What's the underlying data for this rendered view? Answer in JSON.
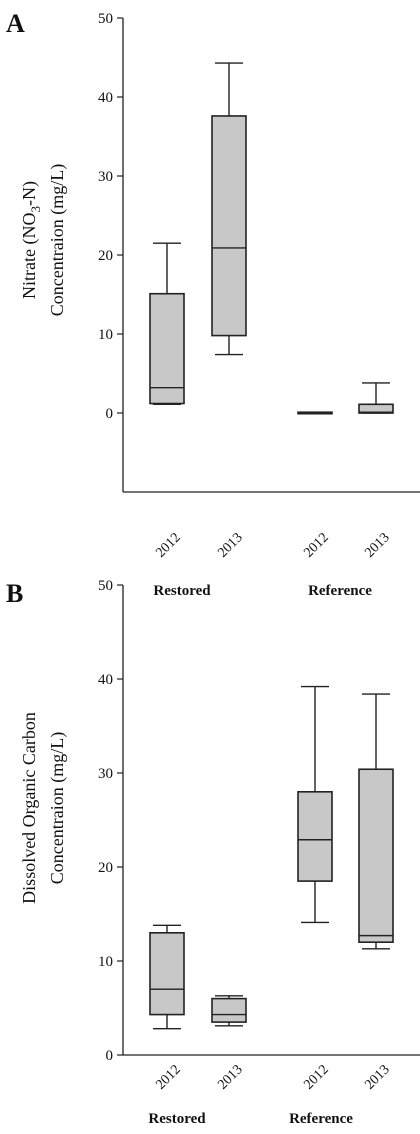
{
  "colors": {
    "box_fill": "#c8c8c8",
    "stroke": "#222222"
  },
  "chart_data": [
    {
      "type": "box",
      "panel_label": "A",
      "ylabel_lines": [
        "Nitrate (NO3-N)",
        "Concentraion (mg/L)"
      ],
      "ylim": [
        -10,
        50
      ],
      "yticks": [
        "0",
        "10",
        "20",
        "30",
        "40",
        "50"
      ],
      "categories": [
        "2012",
        "2013",
        "2012",
        "2013"
      ],
      "groups": [
        {
          "label": "Restored",
          "categories": [
            0,
            1
          ]
        },
        {
          "label": "Reference",
          "categories": [
            2,
            3
          ]
        }
      ],
      "boxes": [
        {
          "whisker_low": 1.1,
          "q1": 1.2,
          "median": 3.2,
          "q3": 15.1,
          "whisker_high": 21.5
        },
        {
          "whisker_low": 7.4,
          "q1": 9.8,
          "median": 20.9,
          "q3": 37.6,
          "whisker_high": 44.3
        },
        {
          "whisker_low": 0.0,
          "q1": 0.0,
          "median": 0.0,
          "q3": 0.1,
          "whisker_high": 0.1
        },
        {
          "whisker_low": 0.0,
          "q1": 0.0,
          "median": 0.1,
          "q3": 1.1,
          "whisker_high": 3.8
        }
      ]
    },
    {
      "type": "box",
      "panel_label": "B",
      "ylabel_lines": [
        "Dissolved Organic Carbon",
        "Concentraion (mg/L)"
      ],
      "ylim": [
        0,
        50
      ],
      "yticks": [
        "0",
        "10",
        "20",
        "30",
        "40",
        "50"
      ],
      "categories": [
        "2012",
        "2013",
        "2012",
        "2013"
      ],
      "groups": [
        {
          "label": "Restored",
          "categories": [
            0,
            1
          ]
        },
        {
          "label": "Reference",
          "categories": [
            2,
            3
          ]
        }
      ],
      "boxes": [
        {
          "whisker_low": 2.8,
          "q1": 4.3,
          "median": 7.0,
          "q3": 13.0,
          "whisker_high": 13.8
        },
        {
          "whisker_low": 3.1,
          "q1": 3.5,
          "median": 4.3,
          "q3": 6.0,
          "whisker_high": 6.3
        },
        {
          "whisker_low": 14.1,
          "q1": 18.5,
          "median": 22.9,
          "q3": 28.0,
          "whisker_high": 39.2
        },
        {
          "whisker_low": 11.3,
          "q1": 12.0,
          "median": 12.7,
          "q3": 30.4,
          "whisker_high": 38.4
        }
      ]
    }
  ]
}
